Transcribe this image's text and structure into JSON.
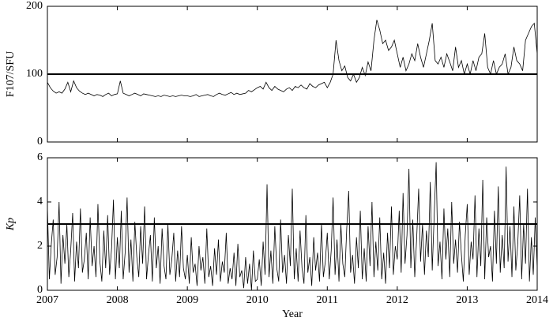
{
  "chart_data": [
    {
      "type": "line",
      "ylabel": "F107/SFU",
      "ylim": [
        0,
        200
      ],
      "yticks": [
        0,
        100,
        200
      ],
      "xlim": [
        2007,
        2014
      ],
      "xticks": [
        2007,
        2008,
        2009,
        2010,
        2011,
        2012,
        2013,
        2014
      ],
      "x_tick_labels": false,
      "reference_line": 100,
      "color": "#000000",
      "x": [
        2007,
        2007.042,
        2007.083,
        2007.125,
        2007.167,
        2007.208,
        2007.25,
        2007.292,
        2007.333,
        2007.375,
        2007.417,
        2007.458,
        2007.5,
        2007.542,
        2007.583,
        2007.625,
        2007.667,
        2007.708,
        2007.75,
        2007.792,
        2007.833,
        2007.875,
        2007.917,
        2007.958,
        2008,
        2008.042,
        2008.083,
        2008.125,
        2008.167,
        2008.208,
        2008.25,
        2008.292,
        2008.333,
        2008.375,
        2008.417,
        2008.458,
        2008.5,
        2008.542,
        2008.583,
        2008.625,
        2008.667,
        2008.708,
        2008.75,
        2008.792,
        2008.833,
        2008.875,
        2008.917,
        2008.958,
        2009,
        2009.042,
        2009.083,
        2009.125,
        2009.167,
        2009.208,
        2009.25,
        2009.292,
        2009.333,
        2009.375,
        2009.417,
        2009.458,
        2009.5,
        2009.542,
        2009.583,
        2009.625,
        2009.667,
        2009.708,
        2009.75,
        2009.792,
        2009.833,
        2009.875,
        2009.917,
        2009.958,
        2010,
        2010.042,
        2010.083,
        2010.125,
        2010.167,
        2010.208,
        2010.25,
        2010.292,
        2010.333,
        2010.375,
        2010.417,
        2010.458,
        2010.5,
        2010.542,
        2010.583,
        2010.625,
        2010.667,
        2010.708,
        2010.75,
        2010.792,
        2010.833,
        2010.875,
        2010.917,
        2010.958,
        2011,
        2011.042,
        2011.083,
        2011.125,
        2011.167,
        2011.208,
        2011.25,
        2011.292,
        2011.333,
        2011.375,
        2011.417,
        2011.458,
        2011.5,
        2011.542,
        2011.583,
        2011.625,
        2011.667,
        2011.708,
        2011.75,
        2011.792,
        2011.833,
        2011.875,
        2011.917,
        2011.958,
        2012,
        2012.042,
        2012.083,
        2012.125,
        2012.167,
        2012.208,
        2012.25,
        2012.292,
        2012.333,
        2012.375,
        2012.417,
        2012.458,
        2012.5,
        2012.542,
        2012.583,
        2012.625,
        2012.667,
        2012.708,
        2012.75,
        2012.792,
        2012.833,
        2012.875,
        2012.917,
        2012.958,
        2013,
        2013.042,
        2013.083,
        2013.125,
        2013.167,
        2013.208,
        2013.25,
        2013.292,
        2013.333,
        2013.375,
        2013.417,
        2013.458,
        2013.5,
        2013.542,
        2013.583,
        2013.625,
        2013.667,
        2013.708,
        2013.75,
        2013.792,
        2013.833,
        2013.875,
        2013.917,
        2013.958,
        2014
      ],
      "values": [
        88,
        80,
        75,
        72,
        74,
        72,
        78,
        88,
        74,
        90,
        80,
        75,
        72,
        70,
        72,
        70,
        68,
        70,
        69,
        67,
        70,
        72,
        68,
        70,
        71,
        90,
        72,
        70,
        68,
        70,
        72,
        70,
        68,
        71,
        70,
        69,
        68,
        67,
        68,
        67,
        69,
        68,
        67,
        68,
        67,
        68,
        69,
        68,
        68,
        67,
        68,
        70,
        67,
        68,
        69,
        70,
        68,
        67,
        70,
        72,
        70,
        69,
        71,
        73,
        70,
        72,
        70,
        71,
        72,
        76,
        74,
        77,
        80,
        82,
        78,
        88,
        80,
        76,
        82,
        78,
        76,
        74,
        78,
        80,
        76,
        82,
        80,
        84,
        80,
        78,
        86,
        82,
        80,
        84,
        86,
        88,
        80,
        88,
        100,
        150,
        120,
        105,
        112,
        95,
        90,
        100,
        88,
        95,
        110,
        98,
        118,
        105,
        150,
        180,
        165,
        145,
        150,
        135,
        140,
        150,
        130,
        110,
        125,
        105,
        115,
        130,
        120,
        145,
        125,
        110,
        130,
        150,
        175,
        120,
        115,
        125,
        110,
        130,
        118,
        105,
        140,
        110,
        120,
        100,
        115,
        100,
        120,
        105,
        125,
        130,
        160,
        110,
        100,
        120,
        100,
        110,
        115,
        130,
        100,
        110,
        140,
        120,
        115,
        105,
        150,
        160,
        170,
        175,
        130
      ]
    },
    {
      "type": "line",
      "ylabel": "Kp",
      "xlabel": "Year",
      "ylim": [
        0,
        6
      ],
      "yticks": [
        0,
        2,
        4,
        6
      ],
      "xlim": [
        2007,
        2014
      ],
      "xticks": [
        2007,
        2008,
        2009,
        2010,
        2011,
        2012,
        2013,
        2014
      ],
      "x_tick_labels": true,
      "reference_line": 3,
      "color": "#000000",
      "x": [
        2007,
        2007.028,
        2007.056,
        2007.083,
        2007.111,
        2007.139,
        2007.167,
        2007.194,
        2007.222,
        2007.25,
        2007.278,
        2007.306,
        2007.333,
        2007.361,
        2007.389,
        2007.417,
        2007.444,
        2007.472,
        2007.5,
        2007.528,
        2007.556,
        2007.583,
        2007.611,
        2007.639,
        2007.667,
        2007.694,
        2007.722,
        2007.75,
        2007.778,
        2007.806,
        2007.833,
        2007.861,
        2007.889,
        2007.917,
        2007.944,
        2007.972,
        2008,
        2008.028,
        2008.056,
        2008.083,
        2008.111,
        2008.139,
        2008.167,
        2008.194,
        2008.222,
        2008.25,
        2008.278,
        2008.306,
        2008.333,
        2008.361,
        2008.389,
        2008.417,
        2008.444,
        2008.472,
        2008.5,
        2008.528,
        2008.556,
        2008.583,
        2008.611,
        2008.639,
        2008.667,
        2008.694,
        2008.722,
        2008.75,
        2008.778,
        2008.806,
        2008.833,
        2008.861,
        2008.889,
        2008.917,
        2008.944,
        2008.972,
        2009,
        2009.028,
        2009.056,
        2009.083,
        2009.111,
        2009.139,
        2009.167,
        2009.194,
        2009.222,
        2009.25,
        2009.278,
        2009.306,
        2009.333,
        2009.361,
        2009.389,
        2009.417,
        2009.444,
        2009.472,
        2009.5,
        2009.528,
        2009.556,
        2009.583,
        2009.611,
        2009.639,
        2009.667,
        2009.694,
        2009.722,
        2009.75,
        2009.778,
        2009.806,
        2009.833,
        2009.861,
        2009.889,
        2009.917,
        2009.944,
        2009.972,
        2010,
        2010.028,
        2010.056,
        2010.083,
        2010.111,
        2010.139,
        2010.167,
        2010.194,
        2010.222,
        2010.25,
        2010.278,
        2010.306,
        2010.333,
        2010.361,
        2010.389,
        2010.417,
        2010.444,
        2010.472,
        2010.5,
        2010.528,
        2010.556,
        2010.583,
        2010.611,
        2010.639,
        2010.667,
        2010.694,
        2010.722,
        2010.75,
        2010.778,
        2010.806,
        2010.833,
        2010.861,
        2010.889,
        2010.917,
        2010.944,
        2010.972,
        2011,
        2011.028,
        2011.056,
        2011.083,
        2011.111,
        2011.139,
        2011.167,
        2011.194,
        2011.222,
        2011.25,
        2011.278,
        2011.306,
        2011.333,
        2011.361,
        2011.389,
        2011.417,
        2011.444,
        2011.472,
        2011.5,
        2011.528,
        2011.556,
        2011.583,
        2011.611,
        2011.639,
        2011.667,
        2011.694,
        2011.722,
        2011.75,
        2011.778,
        2011.806,
        2011.833,
        2011.861,
        2011.889,
        2011.917,
        2011.944,
        2011.972,
        2012,
        2012.028,
        2012.056,
        2012.083,
        2012.111,
        2012.139,
        2012.167,
        2012.194,
        2012.222,
        2012.25,
        2012.278,
        2012.306,
        2012.333,
        2012.361,
        2012.389,
        2012.417,
        2012.444,
        2012.472,
        2012.5,
        2012.528,
        2012.556,
        2012.583,
        2012.611,
        2012.639,
        2012.667,
        2012.694,
        2012.722,
        2012.75,
        2012.778,
        2012.806,
        2012.833,
        2012.861,
        2012.889,
        2012.917,
        2012.944,
        2012.972,
        2013,
        2013.028,
        2013.056,
        2013.083,
        2013.111,
        2013.139,
        2013.167,
        2013.194,
        2013.222,
        2013.25,
        2013.278,
        2013.306,
        2013.333,
        2013.361,
        2013.389,
        2013.417,
        2013.444,
        2013.472,
        2013.5,
        2013.528,
        2013.556,
        2013.583,
        2013.611,
        2013.639,
        2013.667,
        2013.694,
        2013.722,
        2013.75,
        2013.778,
        2013.806,
        2013.833,
        2013.861,
        2013.889,
        2013.917,
        2013.944,
        2013.972,
        2014
      ],
      "values": [
        3.8,
        0.5,
        2.1,
        3.2,
        0.7,
        1.5,
        4.0,
        0.3,
        2.5,
        1.2,
        3.0,
        0.6,
        1.8,
        3.5,
        0.4,
        2.2,
        1.0,
        3.7,
        0.8,
        1.4,
        2.6,
        0.5,
        3.3,
        1.1,
        2.0,
        0.6,
        3.9,
        1.3,
        0.4,
        2.7,
        1.0,
        3.4,
        0.7,
        1.9,
        4.1,
        0.5,
        2.4,
        1.0,
        3.6,
        0.5,
        1.7,
        4.2,
        0.8,
        2.3,
        0.4,
        3.1,
        1.5,
        0.6,
        2.9,
        1.2,
        3.8,
        0.5,
        1.6,
        2.5,
        0.4,
        3.3,
        1.0,
        2.0,
        0.3,
        2.8,
        1.1,
        0.5,
        3.0,
        0.7,
        1.4,
        2.6,
        0.4,
        1.8,
        0.6,
        2.9,
        1.0,
        0.5,
        1.6,
        0.3,
        2.4,
        0.8,
        1.2,
        0.2,
        2.0,
        0.9,
        1.5,
        0.3,
        2.8,
        0.6,
        1.1,
        0.2,
        1.9,
        0.7,
        2.3,
        0.4,
        1.3,
        0.8,
        2.6,
        0.3,
        1.0,
        0.5,
        1.7,
        0.2,
        2.1,
        0.6,
        0.9,
        0.1,
        1.5,
        0.3,
        1.2,
        0.0,
        1.8,
        0.4,
        0.5,
        1.4,
        0.2,
        2.2,
        0.7,
        4.8,
        0.6,
        1.8,
        0.3,
        2.9,
        1.0,
        0.4,
        3.2,
        0.8,
        1.6,
        0.3,
        2.5,
        1.1,
        4.6,
        0.5,
        1.9,
        0.4,
        2.7,
        1.0,
        0.3,
        3.4,
        0.8,
        1.5,
        0.2,
        2.4,
        0.9,
        1.7,
        0.4,
        3.0,
        0.6,
        1.3,
        2.6,
        0.5,
        1.8,
        4.2,
        0.7,
        2.3,
        0.4,
        3.0,
        1.2,
        0.6,
        2.8,
        4.5,
        0.8,
        1.6,
        0.3,
        2.4,
        1.0,
        3.6,
        0.5,
        1.9,
        0.4,
        2.9,
        1.1,
        4.0,
        0.6,
        2.2,
        0.9,
        3.3,
        0.5,
        1.7,
        0.3,
        2.6,
        1.0,
        3.8,
        0.7,
        2.0,
        1.4,
        3.6,
        0.8,
        4.4,
        1.2,
        2.5,
        5.5,
        1.0,
        3.2,
        0.6,
        2.4,
        4.6,
        1.3,
        3.0,
        0.7,
        2.7,
        1.5,
        4.9,
        0.9,
        3.4,
        5.8,
        1.1,
        2.2,
        0.5,
        3.7,
        1.4,
        2.8,
        0.6,
        4.0,
        1.2,
        2.3,
        0.8,
        3.1,
        1.6,
        0.4,
        2.5,
        3.9,
        0.7,
        2.2,
        1.4,
        4.3,
        0.6,
        2.8,
        1.1,
        5.0,
        0.5,
        3.3,
        1.5,
        2.0,
        0.4,
        3.6,
        1.2,
        4.7,
        0.8,
        2.5,
        1.0,
        5.6,
        1.3,
        2.9,
        0.6,
        3.8,
        0.9,
        2.1,
        4.3,
        0.5,
        3.0,
        1.2,
        4.6,
        0.4,
        2.4,
        0.7,
        3.3,
        1.0
      ]
    }
  ]
}
